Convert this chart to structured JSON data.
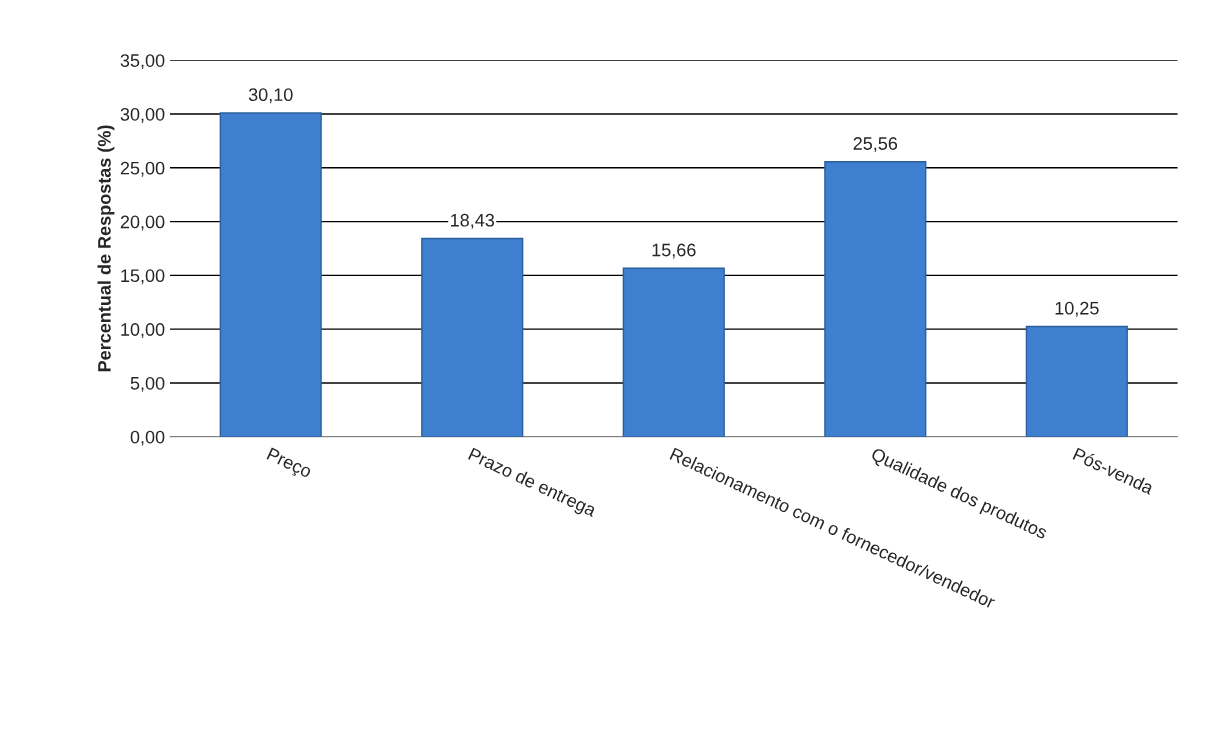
{
  "chart_data": {
    "type": "bar",
    "ylabel": "Percentual de Respostas (%)",
    "categories": [
      "Preço",
      "Prazo de entrega",
      "Relacionamento com o fornecedor/vendedor",
      "Qualidade dos produtos",
      "Pós-venda"
    ],
    "values": [
      30.1,
      18.43,
      15.66,
      25.56,
      10.25
    ],
    "value_labels": [
      "30,10",
      "18,43",
      "15,66",
      "25,56",
      "10,25"
    ],
    "color": "#3f7fcf",
    "ylim": [
      0,
      35
    ],
    "yticks": [
      {
        "value": 0,
        "label": "0,00"
      },
      {
        "value": 5,
        "label": "5,00"
      },
      {
        "value": 10,
        "label": "10,00"
      },
      {
        "value": 15,
        "label": "15,00"
      },
      {
        "value": 20,
        "label": "20,00"
      },
      {
        "value": 25,
        "label": "25,00"
      },
      {
        "value": 30,
        "label": "30,00"
      },
      {
        "value": 35,
        "label": "35,00"
      }
    ],
    "grid": "y"
  }
}
